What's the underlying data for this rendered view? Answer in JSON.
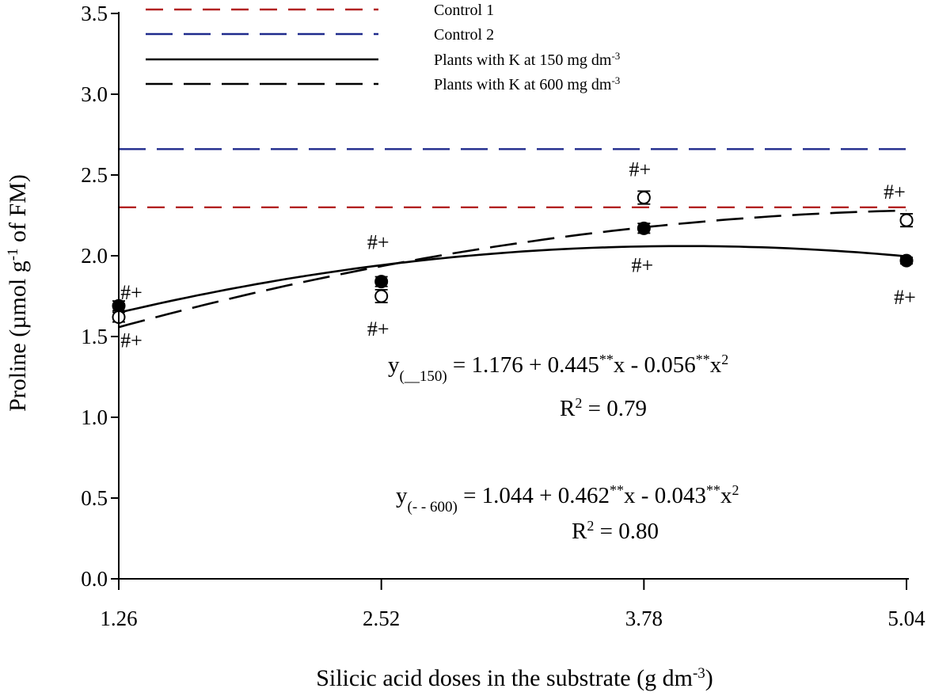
{
  "chart_data": {
    "type": "line",
    "xlabel": "Silicic acid doses in the substrate (g dm",
    "xlabel_sup": "-3",
    "xlabel_end": ")",
    "ylabel_parts": [
      "Proline (µmol g",
      "-1",
      " of FM)"
    ],
    "xlim": [
      1.26,
      5.04
    ],
    "ylim": [
      0,
      3.5
    ],
    "x_ticks": [
      "1.26",
      "2.52",
      "3.78",
      "5.04"
    ],
    "y_ticks": [
      "0.0",
      "0.5",
      "1.0",
      "1.5",
      "2.0",
      "2.5",
      "3.0",
      "3.5"
    ],
    "legend": [
      {
        "text": "Control 1",
        "sup": "",
        "color": "#b22222",
        "dash": "short"
      },
      {
        "text": "Control 2",
        "sup": "",
        "color": "#1f2a8c",
        "dash": "long"
      },
      {
        "text": "Plants with K at 150 mg dm",
        "sup": "-3",
        "color": "#000000",
        "dash": "solid"
      },
      {
        "text": "Plants with K at 600 mg dm",
        "sup": "-3",
        "color": "#000000",
        "dash": "long"
      }
    ],
    "controls": [
      {
        "y": 2.3,
        "color": "#b22222"
      },
      {
        "y": 2.66,
        "color": "#1f2a8c"
      }
    ],
    "series": [
      {
        "marker": "filled",
        "x": [
          1.26,
          2.52,
          3.78,
          5.04
        ],
        "y": [
          1.69,
          1.84,
          2.17,
          1.97
        ],
        "err": [
          0.03,
          0.03,
          0.03,
          0.02
        ],
        "fit": [
          1.176,
          0.445,
          -0.056
        ]
      },
      {
        "marker": "open",
        "x": [
          1.26,
          2.52,
          3.78,
          5.04
        ],
        "y": [
          1.62,
          1.75,
          2.36,
          2.22
        ],
        "err": [
          0.03,
          0.04,
          0.04,
          0.04
        ],
        "fit": [
          1.044,
          0.462,
          -0.043
        ]
      }
    ],
    "significance": "#+",
    "equations": [
      {
        "y_sub": "(__150)",
        "eq_a": " = 1.176 + 0.445",
        "stars": "**",
        "eq_b": "x - 0.056",
        "stars2": "**",
        "eq_c": "x",
        "pow": "2",
        "r2_a": "R",
        "r2_pow": "2",
        "r2_b": " = 0.79"
      },
      {
        "y_sub": "(- - 600)",
        "eq_a": " = 1.044 + 0.462",
        "stars": "**",
        "eq_b": "x - 0.043",
        "stars2": "**",
        "eq_c": "x",
        "pow": "2",
        "r2_a": "R",
        "r2_pow": "2",
        "r2_b": " = 0.80"
      }
    ]
  }
}
